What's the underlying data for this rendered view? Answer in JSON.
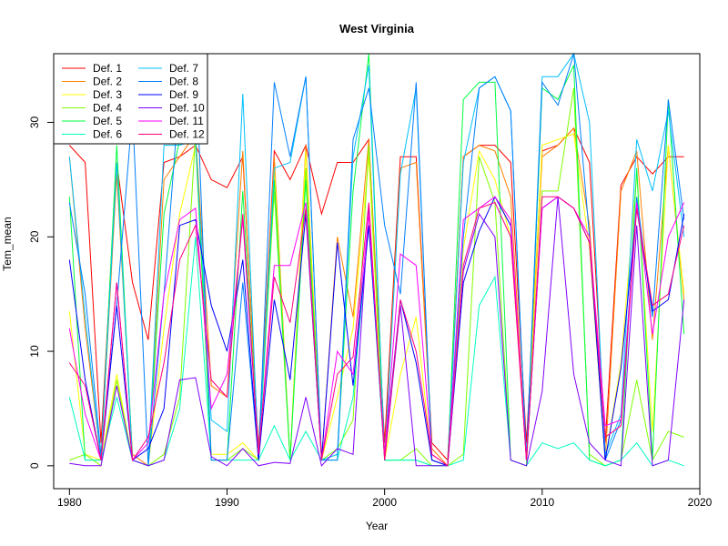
{
  "chart_data": {
    "type": "line",
    "title": "West Virginia",
    "xlabel": "Year",
    "ylabel": "Tem_mean",
    "xlim": [
      1979,
      2020
    ],
    "ylim": [
      -2,
      36
    ],
    "xticks": [
      1980,
      1990,
      2000,
      2010,
      2020
    ],
    "yticks": [
      0,
      10,
      20,
      30
    ],
    "legend_position": "top-left",
    "legend_columns": 2,
    "x": [
      1980,
      1981,
      1982,
      1983,
      1984,
      1985,
      1986,
      1987,
      1988,
      1989,
      1990,
      1991,
      1992,
      1993,
      1994,
      1995,
      1996,
      1997,
      1998,
      1999,
      2000,
      2001,
      2002,
      2003,
      2004,
      2005,
      2006,
      2007,
      2008,
      2009,
      2010,
      2011,
      2012,
      2013,
      2014,
      2015,
      2016,
      2017,
      2018,
      2019
    ],
    "series": [
      {
        "name": "Def. 1",
        "color": "#ff0000",
        "values": [
          28.0,
          26.5,
          2.0,
          26.5,
          16.0,
          11.0,
          26.5,
          27.0,
          28.0,
          25.0,
          24.3,
          27.0,
          1.5,
          27.5,
          25.0,
          28.0,
          22.0,
          26.5,
          26.5,
          28.5,
          2.0,
          27.0,
          27.0,
          2.0,
          0.5,
          27.0,
          28.0,
          28.0,
          26.5,
          2.0,
          27.5,
          28.0,
          29.5,
          26.5,
          2.0,
          24.5,
          27.0,
          25.5,
          27.0,
          27.0
        ]
      },
      {
        "name": "Def. 2",
        "color": "#ff8000",
        "values": [
          27.0,
          12.0,
          0.5,
          25.5,
          1.0,
          0.0,
          25.0,
          27.0,
          29.0,
          7.0,
          6.0,
          27.5,
          1.0,
          27.0,
          0.5,
          28.0,
          0.5,
          20.0,
          13.0,
          28.5,
          1.0,
          26.0,
          26.5,
          1.5,
          0.0,
          27.0,
          28.0,
          27.5,
          23.5,
          0.5,
          27.0,
          28.0,
          29.5,
          21.0,
          0.5,
          24.0,
          27.5,
          11.0,
          28.0,
          14.5
        ]
      },
      {
        "name": "Def. 3",
        "color": "#ffff00",
        "values": [
          13.5,
          1.0,
          0.5,
          8.0,
          0.5,
          0.0,
          12.0,
          22.0,
          28.0,
          1.0,
          1.0,
          2.0,
          0.5,
          26.0,
          0.5,
          27.5,
          0.5,
          6.0,
          12.0,
          27.0,
          0.5,
          8.0,
          13.0,
          0.5,
          0.0,
          19.0,
          27.5,
          25.0,
          20.0,
          0.5,
          28.0,
          28.5,
          29.0,
          19.0,
          0.5,
          9.0,
          25.5,
          3.0,
          28.0,
          15.0
        ]
      },
      {
        "name": "Def. 4",
        "color": "#80ff00",
        "values": [
          0.5,
          1.0,
          0.0,
          7.5,
          0.5,
          0.0,
          1.0,
          6.0,
          29.0,
          0.5,
          0.5,
          1.5,
          0.5,
          24.0,
          0.5,
          26.0,
          0.5,
          1.5,
          4.0,
          28.0,
          0.5,
          0.5,
          1.5,
          0.0,
          0.0,
          1.0,
          27.0,
          23.0,
          0.5,
          0.0,
          24.0,
          24.0,
          33.0,
          1.0,
          0.0,
          0.5,
          7.5,
          0.5,
          3.0,
          2.5
        ]
      },
      {
        "name": "Def. 5",
        "color": "#00ff40",
        "values": [
          23.5,
          0.5,
          0.5,
          28.0,
          0.5,
          0.0,
          22.0,
          28.5,
          28.5,
          0.5,
          0.5,
          24.0,
          0.5,
          25.0,
          0.5,
          25.0,
          0.5,
          1.0,
          24.0,
          36.0,
          0.5,
          0.5,
          0.5,
          0.0,
          0.0,
          32.0,
          33.5,
          33.5,
          0.5,
          0.0,
          33.0,
          32.0,
          35.0,
          0.5,
          0.0,
          0.5,
          26.0,
          0.5,
          32.0,
          11.5
        ]
      },
      {
        "name": "Def. 6",
        "color": "#00ffc0",
        "values": [
          6.0,
          0.5,
          0.5,
          6.0,
          0.5,
          0.0,
          0.5,
          5.0,
          20.0,
          0.5,
          0.5,
          0.5,
          0.5,
          3.5,
          0.5,
          3.0,
          0.5,
          0.5,
          6.0,
          21.0,
          0.5,
          0.5,
          0.5,
          0.0,
          0.0,
          0.5,
          14.0,
          16.5,
          0.5,
          0.0,
          2.0,
          1.5,
          2.0,
          0.5,
          0.0,
          0.5,
          2.0,
          0.0,
          0.5,
          0.0
        ]
      },
      {
        "name": "Def. 7",
        "color": "#00c0ff",
        "values": [
          27.0,
          13.0,
          0.5,
          26.5,
          0.5,
          0.0,
          28.0,
          28.0,
          28.5,
          4.0,
          3.0,
          32.5,
          0.5,
          26.0,
          26.5,
          34.0,
          0.5,
          1.0,
          27.0,
          35.0,
          0.5,
          25.5,
          33.0,
          0.5,
          0.0,
          26.5,
          33.0,
          34.0,
          31.0,
          0.5,
          34.0,
          34.0,
          36.0,
          30.0,
          1.0,
          4.5,
          28.5,
          24.0,
          31.0,
          20.0
        ]
      },
      {
        "name": "Def. 8",
        "color": "#0080ff",
        "values": [
          23.0,
          15.0,
          1.0,
          14.0,
          31.0,
          0.0,
          15.0,
          33.0,
          36.0,
          0.5,
          0.5,
          16.0,
          0.5,
          33.5,
          27.0,
          34.0,
          0.5,
          0.5,
          28.5,
          33.0,
          21.0,
          15.0,
          33.5,
          0.5,
          0.0,
          20.0,
          33.0,
          34.0,
          31.0,
          0.5,
          33.5,
          31.5,
          36.0,
          20.0,
          0.5,
          4.0,
          23.5,
          13.0,
          32.0,
          21.5
        ]
      },
      {
        "name": "Def. 9",
        "color": "#0000ff",
        "values": [
          18.0,
          7.5,
          0.5,
          14.0,
          0.5,
          1.5,
          5.0,
          21.0,
          21.5,
          14.0,
          10.0,
          18.0,
          0.5,
          14.5,
          7.5,
          22.0,
          0.5,
          19.5,
          7.0,
          21.0,
          1.0,
          14.5,
          9.0,
          0.5,
          0.0,
          16.0,
          20.5,
          23.5,
          21.0,
          0.5,
          22.5,
          23.5,
          22.5,
          19.5,
          0.5,
          8.5,
          22.5,
          13.5,
          14.5,
          22.0
        ]
      },
      {
        "name": "Def. 10",
        "color": "#8000ff",
        "values": [
          0.2,
          0.0,
          0.0,
          7.0,
          0.5,
          0.0,
          0.5,
          7.5,
          7.7,
          0.8,
          0.0,
          1.5,
          0.0,
          0.3,
          0.2,
          6.0,
          0.0,
          1.5,
          1.0,
          22.5,
          0.5,
          14.0,
          0.0,
          0.0,
          0.0,
          17.0,
          22.0,
          20.0,
          0.5,
          0.0,
          6.5,
          23.5,
          8.0,
          2.0,
          0.5,
          0.0,
          21.0,
          0.0,
          0.5,
          14.5
        ]
      },
      {
        "name": "Def. 11",
        "color": "#ff00ff",
        "values": [
          12.0,
          4.5,
          0.5,
          16.0,
          0.5,
          2.0,
          15.0,
          21.5,
          22.5,
          5.0,
          8.0,
          21.5,
          1.0,
          17.5,
          17.5,
          23.0,
          0.5,
          10.0,
          8.0,
          22.0,
          1.0,
          18.5,
          17.5,
          1.0,
          0.0,
          21.5,
          22.5,
          23.5,
          21.5,
          0.5,
          22.5,
          23.5,
          22.5,
          20.0,
          3.5,
          4.0,
          23.0,
          11.5,
          20.0,
          23.0
        ]
      },
      {
        "name": "Def. 12",
        "color": "#ff0080",
        "values": [
          9.0,
          7.0,
          0.5,
          16.0,
          0.5,
          2.5,
          9.0,
          18.0,
          21.0,
          7.5,
          6.0,
          22.0,
          1.0,
          16.5,
          12.5,
          22.5,
          0.5,
          8.0,
          9.5,
          23.0,
          0.5,
          14.5,
          10.0,
          1.0,
          0.0,
          17.5,
          22.5,
          23.0,
          20.0,
          0.5,
          23.5,
          23.5,
          22.5,
          19.5,
          2.5,
          3.5,
          22.5,
          14.0,
          15.0,
          21.0
        ]
      }
    ]
  }
}
